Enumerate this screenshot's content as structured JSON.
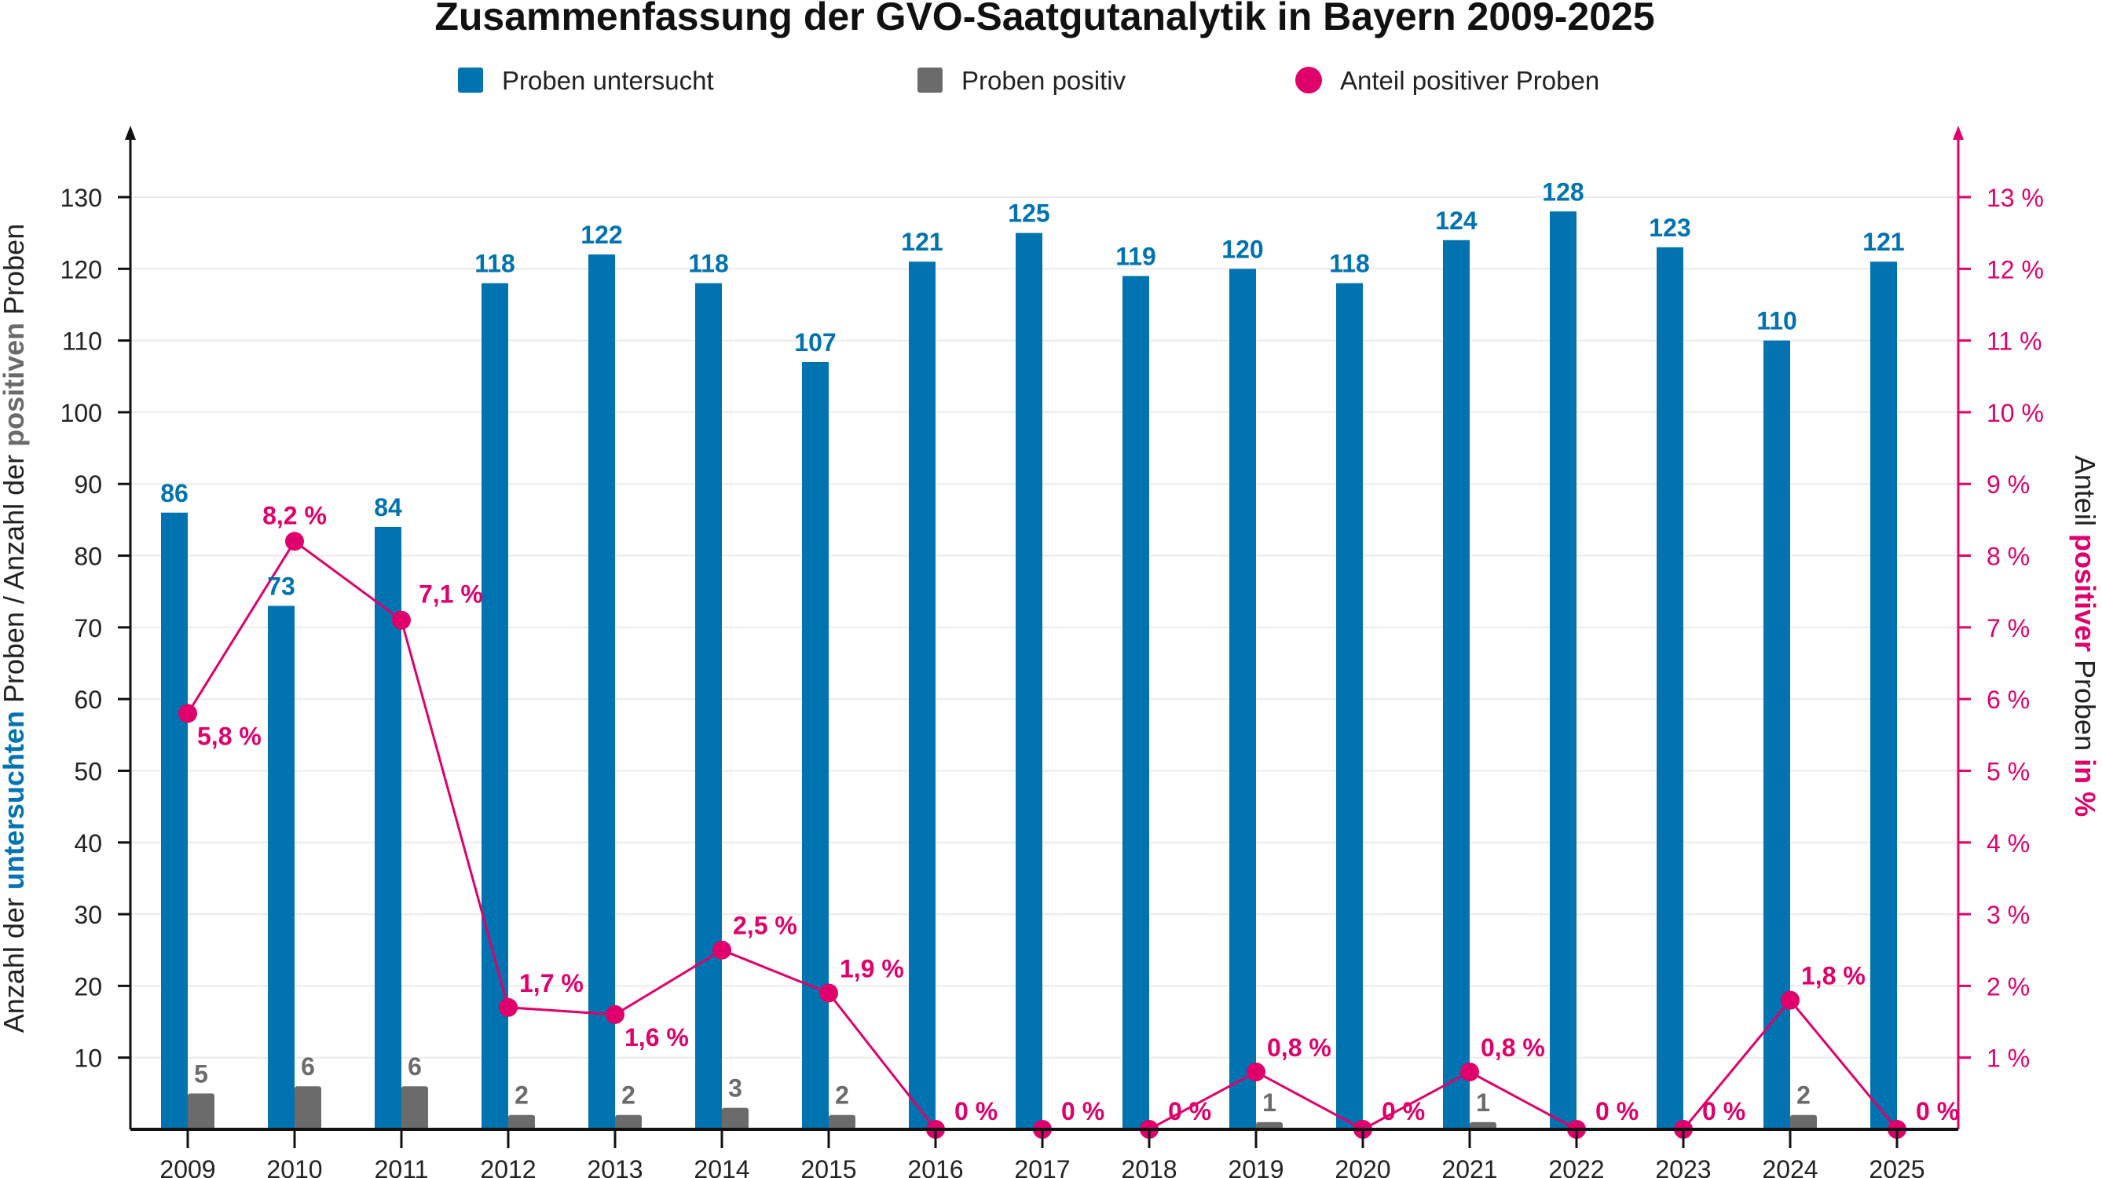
{
  "chart_data": {
    "type": "bar",
    "title": "Zusammenfassung der GVO-Saatgutanalytik in Bayern 2009-2025",
    "legend": [
      {
        "label": "Proben untersucht",
        "color": "#0073B0"
      },
      {
        "label": "Proben positiv",
        "color": "#6B6B6B"
      },
      {
        "label": "Anteil positiver Proben",
        "color": "#E0006B"
      }
    ],
    "legend_position": "top",
    "ylabel_left_parts": [
      {
        "text": "Anzahl der ",
        "bold": false,
        "color": "#222222"
      },
      {
        "text": "untersuchten",
        "bold": true,
        "color": "#0073B0"
      },
      {
        "text": " Proben / Anzahl der ",
        "bold": false,
        "color": "#222222"
      },
      {
        "text": "positiven",
        "bold": true,
        "color": "#6B6B6B"
      },
      {
        "text": " Proben",
        "bold": false,
        "color": "#222222"
      }
    ],
    "ylabel_right_parts": [
      {
        "text": "Anteil ",
        "bold": false,
        "color": "#222222"
      },
      {
        "text": "positiver",
        "bold": true,
        "color": "#E0006B"
      },
      {
        "text": " Proben ",
        "bold": false,
        "color": "#222222"
      },
      {
        "text": "in %",
        "bold": true,
        "color": "#E0006B"
      }
    ],
    "ylim_left": [
      0,
      130
    ],
    "ylim_right": [
      0,
      13
    ],
    "yticks_left": [
      10,
      20,
      30,
      40,
      50,
      60,
      70,
      80,
      90,
      100,
      110,
      120,
      130
    ],
    "yticks_right": [
      "1 %",
      "2 %",
      "3 %",
      "4 %",
      "5 %",
      "6 %",
      "7 %",
      "8 %",
      "9 %",
      "10 %",
      "11 %",
      "12 %",
      "13 %"
    ],
    "grid": true,
    "categories": [
      "2009",
      "2010",
      "2011",
      "2012",
      "2013",
      "2014",
      "2015",
      "2016",
      "2017",
      "2018",
      "2019",
      "2020",
      "2021",
      "2022",
      "2023",
      "2024",
      "2025"
    ],
    "series": [
      {
        "name": "Proben untersucht",
        "axis": "left",
        "type": "bar",
        "values": [
          86,
          73,
          84,
          118,
          122,
          118,
          107,
          121,
          125,
          119,
          120,
          118,
          124,
          128,
          123,
          110,
          121
        ]
      },
      {
        "name": "Proben positiv",
        "axis": "left",
        "type": "bar",
        "values": [
          5,
          6,
          6,
          2,
          2,
          3,
          2,
          0,
          0,
          0,
          1,
          0,
          1,
          0,
          0,
          2,
          0
        ]
      },
      {
        "name": "Anteil positiver Proben",
        "axis": "right",
        "type": "line",
        "values": [
          5.8,
          8.2,
          7.1,
          1.7,
          1.6,
          2.5,
          1.9,
          0,
          0,
          0,
          0.8,
          0,
          0.8,
          0,
          0,
          1.8,
          0
        ],
        "labels": [
          "5,8 %",
          "8,2 %",
          "7,1 %",
          "1,7 %",
          "1,6 %",
          "2,5 %",
          "1,9 %",
          "0 %",
          "0 %",
          "0 %",
          "0,8 %",
          "0 %",
          "0,8 %",
          "0 %",
          "0 %",
          "1,8 %",
          "0 %"
        ]
      }
    ],
    "colors": {
      "blue": "#0073B0",
      "gray": "#6B6B6B",
      "pink": "#E0006B",
      "axis": "#111111",
      "grid": "#EBEBEB"
    }
  }
}
